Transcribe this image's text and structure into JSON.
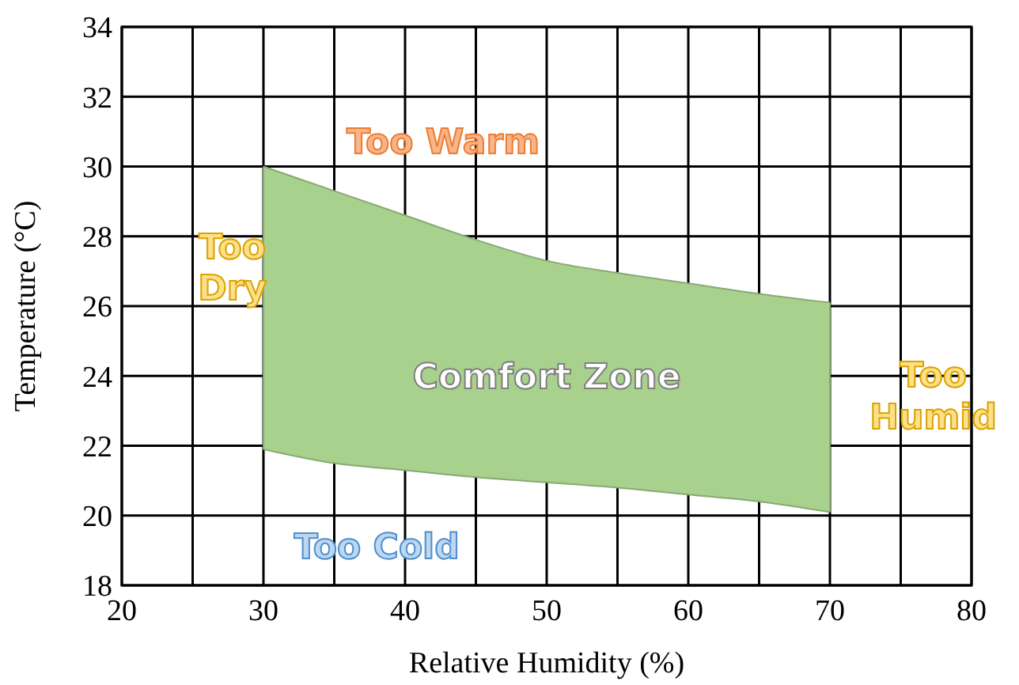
{
  "chart_data": {
    "type": "line",
    "xlabel": "Relative Humidity (%)",
    "ylabel": "Temperature (°C)",
    "x": [
      30,
      35,
      40,
      45,
      50,
      55,
      60,
      65,
      70
    ],
    "series": [
      {
        "color": "#88a973",
        "values": [
          30,
          29.3,
          28.6,
          27.9,
          27.3,
          26.95,
          26.65,
          26.35,
          26.1
        ]
      },
      {
        "color": "#88a973",
        "values": [
          21.9,
          21.5,
          21.3,
          21.1,
          20.95,
          20.8,
          20.6,
          20.4,
          20.1
        ]
      }
    ],
    "xlim": [
      20,
      80
    ],
    "xticks": [
      20,
      {
        "value": 25,
        "label": null
      },
      30,
      {
        "value": 35,
        "label": null
      },
      40,
      {
        "value": 45,
        "label": null
      },
      50,
      {
        "value": 55,
        "label": null
      },
      60,
      {
        "value": 65,
        "label": null
      },
      70,
      {
        "value": 75,
        "label": null
      },
      80
    ],
    "ylim": [
      18,
      34
    ],
    "yticks": [
      18,
      20,
      22,
      24,
      26,
      28,
      30,
      32,
      34
    ],
    "grid": true,
    "annotations": [
      "Too Warm",
      "Too\nDry",
      "Comfort Zone",
      "Too\nHumid",
      "Too Cold"
    ]
  }
}
